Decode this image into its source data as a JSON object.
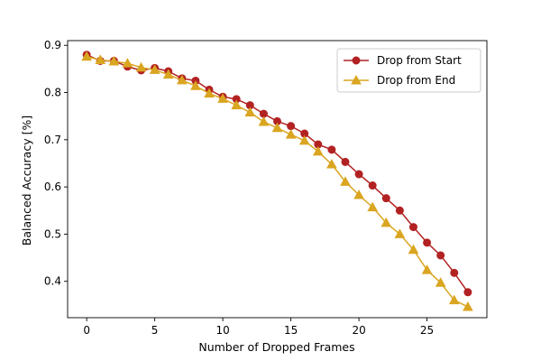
{
  "chart_data": {
    "type": "line",
    "title": "",
    "xlabel": "Number of Dropped Frames",
    "ylabel": "Balanced Accuracy [%]",
    "xlim": [
      -1.4,
      29.4
    ],
    "ylim": [
      0.323,
      0.91
    ],
    "xticks": [
      0,
      5,
      10,
      15,
      20,
      25
    ],
    "yticks": [
      0.4,
      0.5,
      0.6,
      0.7,
      0.8,
      0.9
    ],
    "xtick_labels": [
      "0",
      "5",
      "10",
      "15",
      "20",
      "25"
    ],
    "ytick_labels": [
      "0.4",
      "0.5",
      "0.6",
      "0.7",
      "0.8",
      "0.9"
    ],
    "grid": false,
    "legend": "upper-right",
    "x": [
      0,
      1,
      2,
      3,
      4,
      5,
      6,
      7,
      8,
      9,
      10,
      11,
      12,
      13,
      14,
      15,
      16,
      17,
      18,
      19,
      20,
      21,
      22,
      23,
      24,
      25,
      26,
      27,
      28
    ],
    "series": [
      {
        "name": "Drop from Start",
        "color": "#b22222",
        "marker": "circle",
        "values": [
          0.88,
          0.867,
          0.867,
          0.855,
          0.847,
          0.852,
          0.845,
          0.83,
          0.825,
          0.806,
          0.791,
          0.786,
          0.773,
          0.755,
          0.739,
          0.729,
          0.713,
          0.69,
          0.679,
          0.653,
          0.627,
          0.603,
          0.576,
          0.55,
          0.515,
          0.482,
          0.455,
          0.418,
          0.377
        ]
      },
      {
        "name": "Drop from End",
        "color": "#daa520",
        "marker": "triangle",
        "values": [
          0.876,
          0.869,
          0.866,
          0.862,
          0.853,
          0.848,
          0.838,
          0.826,
          0.814,
          0.798,
          0.787,
          0.773,
          0.758,
          0.738,
          0.725,
          0.711,
          0.698,
          0.675,
          0.648,
          0.611,
          0.583,
          0.557,
          0.524,
          0.5,
          0.467,
          0.424,
          0.397,
          0.36,
          0.346
        ]
      }
    ]
  }
}
